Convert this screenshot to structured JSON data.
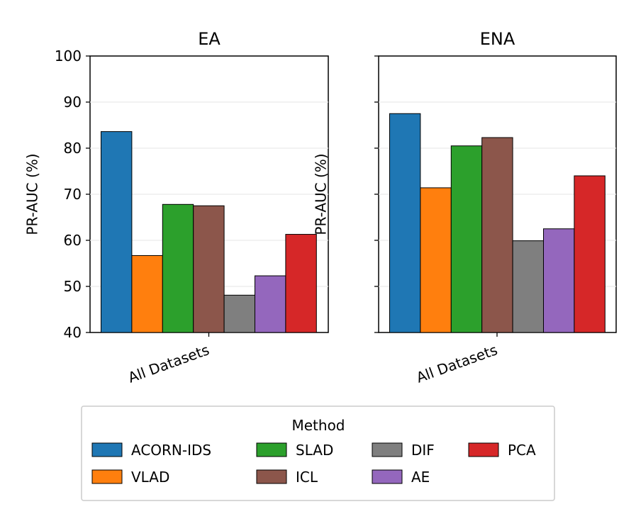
{
  "chart_data": [
    {
      "type": "bar",
      "title": "EA",
      "ylabel": "PR-AUC (%)",
      "xlabel": "",
      "categories": [
        "All Datasets"
      ],
      "ylim": [
        40,
        100
      ],
      "yticks": [
        40,
        50,
        60,
        70,
        80,
        90,
        100
      ],
      "grid": "y",
      "series": [
        {
          "name": "ACORN-IDS",
          "values": [
            83.6
          ]
        },
        {
          "name": "VLAD",
          "values": [
            56.7
          ]
        },
        {
          "name": "SLAD",
          "values": [
            67.8
          ]
        },
        {
          "name": "ICL",
          "values": [
            67.5
          ]
        },
        {
          "name": "DIF",
          "values": [
            48.1
          ]
        },
        {
          "name": "AE",
          "values": [
            52.3
          ]
        },
        {
          "name": "PCA",
          "values": [
            61.3
          ]
        }
      ]
    },
    {
      "type": "bar",
      "title": "ENA",
      "ylabel": "PR-AUC (%)",
      "xlabel": "",
      "categories": [
        "All Datasets"
      ],
      "ylim": [
        40,
        100
      ],
      "yticks": [
        40,
        50,
        60,
        70,
        80,
        90,
        100
      ],
      "grid": "y",
      "series": [
        {
          "name": "ACORN-IDS",
          "values": [
            87.5
          ]
        },
        {
          "name": "VLAD",
          "values": [
            71.4
          ]
        },
        {
          "name": "SLAD",
          "values": [
            80.5
          ]
        },
        {
          "name": "ICL",
          "values": [
            82.3
          ]
        },
        {
          "name": "DIF",
          "values": [
            59.9
          ]
        },
        {
          "name": "AE",
          "values": [
            62.5
          ]
        },
        {
          "name": "PCA",
          "values": [
            74.0
          ]
        }
      ]
    }
  ],
  "legend": {
    "title": "Method",
    "placement": "bottom-center",
    "ncols": 4,
    "items": [
      {
        "name": "ACORN-IDS",
        "color": "#1f77b4"
      },
      {
        "name": "VLAD",
        "color": "#ff7f0e"
      },
      {
        "name": "SLAD",
        "color": "#2ca02c"
      },
      {
        "name": "ICL",
        "color": "#8c564b"
      },
      {
        "name": "DIF",
        "color": "#7f7f7f"
      },
      {
        "name": "AE",
        "color": "#9467bd"
      },
      {
        "name": "PCA",
        "color": "#d62728"
      }
    ]
  },
  "colors": {
    "ACORN-IDS": "#1f77b4",
    "VLAD": "#ff7f0e",
    "SLAD": "#2ca02c",
    "ICL": "#8c564b",
    "DIF": "#7f7f7f",
    "AE": "#9467bd",
    "PCA": "#d62728"
  }
}
